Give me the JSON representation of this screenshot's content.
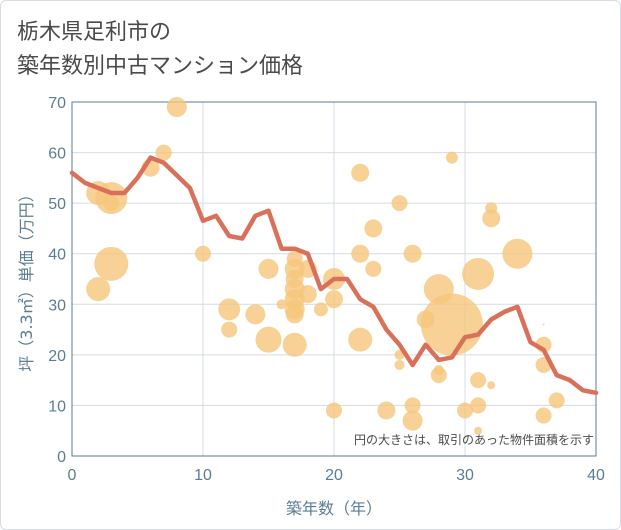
{
  "chart_data": {
    "type": "scatter",
    "title": "栃木県足利市の\n築年数別中古マンション価格",
    "xlabel": "築年数（年）",
    "ylabel": "坪（3.3㎡）単価（万円）",
    "xlim": [
      0,
      40
    ],
    "ylim": [
      0,
      70
    ],
    "xticks": [
      0,
      10,
      20,
      30,
      40
    ],
    "yticks": [
      0,
      10,
      20,
      30,
      40,
      50,
      60,
      70
    ],
    "grid": true,
    "annotation": "円の大きさは、取引のあった物件面積を示す",
    "colors": {
      "bubble": "#f5c57a",
      "line": "#d9705a",
      "axis": "#5b7c95",
      "grid": "#d4dbe6"
    },
    "series": [
      {
        "type": "scatter",
        "points": [
          {
            "x": 2,
            "y": 52,
            "s": 12
          },
          {
            "x": 2,
            "y": 33,
            "s": 12
          },
          {
            "x": 3,
            "y": 51,
            "s": 16
          },
          {
            "x": 3,
            "y": 50,
            "s": 8
          },
          {
            "x": 3,
            "y": 38,
            "s": 17
          },
          {
            "x": 6,
            "y": 57,
            "s": 9
          },
          {
            "x": 7,
            "y": 60,
            "s": 8
          },
          {
            "x": 8,
            "y": 69,
            "s": 10
          },
          {
            "x": 10,
            "y": 40,
            "s": 8
          },
          {
            "x": 12,
            "y": 29,
            "s": 11
          },
          {
            "x": 12,
            "y": 25,
            "s": 8
          },
          {
            "x": 14,
            "y": 28,
            "s": 10
          },
          {
            "x": 15,
            "y": 37,
            "s": 10
          },
          {
            "x": 15,
            "y": 23,
            "s": 13
          },
          {
            "x": 16,
            "y": 30,
            "s": 5
          },
          {
            "x": 17,
            "y": 39,
            "s": 8
          },
          {
            "x": 17,
            "y": 37,
            "s": 10
          },
          {
            "x": 17,
            "y": 35,
            "s": 9
          },
          {
            "x": 17,
            "y": 33,
            "s": 10
          },
          {
            "x": 17,
            "y": 31,
            "s": 10
          },
          {
            "x": 17,
            "y": 29,
            "s": 10
          },
          {
            "x": 17,
            "y": 28,
            "s": 9
          },
          {
            "x": 17,
            "y": 22,
            "s": 12
          },
          {
            "x": 18,
            "y": 37,
            "s": 9
          },
          {
            "x": 18,
            "y": 32,
            "s": 9
          },
          {
            "x": 19,
            "y": 29,
            "s": 7
          },
          {
            "x": 20,
            "y": 35,
            "s": 11
          },
          {
            "x": 20,
            "y": 31,
            "s": 9
          },
          {
            "x": 20,
            "y": 9,
            "s": 8
          },
          {
            "x": 22,
            "y": 56,
            "s": 9
          },
          {
            "x": 22,
            "y": 40,
            "s": 9
          },
          {
            "x": 22,
            "y": 23,
            "s": 12
          },
          {
            "x": 23,
            "y": 45,
            "s": 9
          },
          {
            "x": 23,
            "y": 37,
            "s": 8
          },
          {
            "x": 24,
            "y": 9,
            "s": 9
          },
          {
            "x": 25,
            "y": 50,
            "s": 8
          },
          {
            "x": 25,
            "y": 20,
            "s": 5
          },
          {
            "x": 25,
            "y": 18,
            "s": 5
          },
          {
            "x": 26,
            "y": 40,
            "s": 9
          },
          {
            "x": 26,
            "y": 10,
            "s": 8
          },
          {
            "x": 26,
            "y": 7,
            "s": 10
          },
          {
            "x": 27,
            "y": 27,
            "s": 9
          },
          {
            "x": 28,
            "y": 33,
            "s": 15
          },
          {
            "x": 28,
            "y": 17,
            "s": 5
          },
          {
            "x": 28,
            "y": 16,
            "s": 8
          },
          {
            "x": 29,
            "y": 26,
            "s": 31
          },
          {
            "x": 29,
            "y": 59,
            "s": 6
          },
          {
            "x": 30,
            "y": 9,
            "s": 8
          },
          {
            "x": 31,
            "y": 36,
            "s": 16
          },
          {
            "x": 31,
            "y": 15,
            "s": 8
          },
          {
            "x": 31,
            "y": 10,
            "s": 8
          },
          {
            "x": 31,
            "y": 5,
            "s": 4
          },
          {
            "x": 32,
            "y": 49,
            "s": 6
          },
          {
            "x": 32,
            "y": 47,
            "s": 9
          },
          {
            "x": 32,
            "y": 14,
            "s": 4
          },
          {
            "x": 34,
            "y": 40,
            "s": 15
          },
          {
            "x": 36,
            "y": 26,
            "s": 1
          },
          {
            "x": 36,
            "y": 22,
            "s": 8
          },
          {
            "x": 36,
            "y": 18,
            "s": 8
          },
          {
            "x": 36,
            "y": 8,
            "s": 8
          },
          {
            "x": 37,
            "y": 11,
            "s": 8
          }
        ]
      },
      {
        "type": "line",
        "x": [
          0,
          1,
          2,
          3,
          4,
          5,
          6,
          7,
          8,
          9,
          10,
          11,
          12,
          13,
          14,
          15,
          16,
          17,
          18,
          19,
          20,
          21,
          22,
          23,
          24,
          25,
          26,
          27,
          28,
          29,
          30,
          31,
          32,
          33,
          34,
          35,
          36,
          37,
          38,
          39,
          40
        ],
        "y": [
          56,
          54,
          53,
          52,
          52,
          55,
          59,
          58,
          55.5,
          53,
          46.5,
          47.5,
          43.5,
          43,
          47.5,
          48.5,
          41,
          41,
          40,
          33,
          35,
          35,
          31,
          29.5,
          25,
          22,
          18,
          22,
          19,
          19.5,
          23.5,
          24,
          27,
          28.5,
          29.5,
          22.5,
          21,
          16,
          15,
          13,
          12.5
        ]
      }
    ]
  }
}
